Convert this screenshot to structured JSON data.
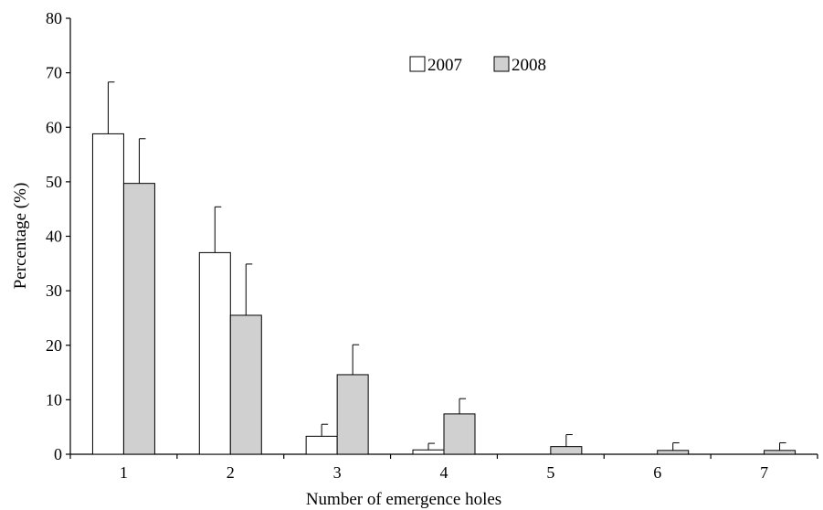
{
  "chart_data": {
    "type": "bar",
    "title": "",
    "xlabel": "Number of emergence holes",
    "ylabel": "Percentage (%)",
    "categories": [
      "1",
      "2",
      "3",
      "4",
      "5",
      "6",
      "7"
    ],
    "ylim": [
      0,
      80
    ],
    "yticks": [
      "0",
      "10",
      "20",
      "30",
      "40",
      "50",
      "60",
      "70",
      "80"
    ],
    "grid": false,
    "legend": "top-center",
    "series": [
      {
        "name": "2007",
        "color": "#ffffff",
        "values": [
          58.8,
          37.0,
          3.3,
          0.8,
          0,
          0,
          0
        ],
        "errors": [
          9.5,
          8.4,
          2.2,
          1.2,
          0,
          0,
          0
        ]
      },
      {
        "name": "2008",
        "color": "#d0d0d0",
        "values": [
          49.7,
          25.5,
          14.6,
          7.4,
          1.4,
          0.7,
          0.7
        ],
        "errors": [
          8.2,
          9.4,
          5.5,
          2.8,
          2.2,
          1.4,
          1.4
        ]
      }
    ]
  }
}
